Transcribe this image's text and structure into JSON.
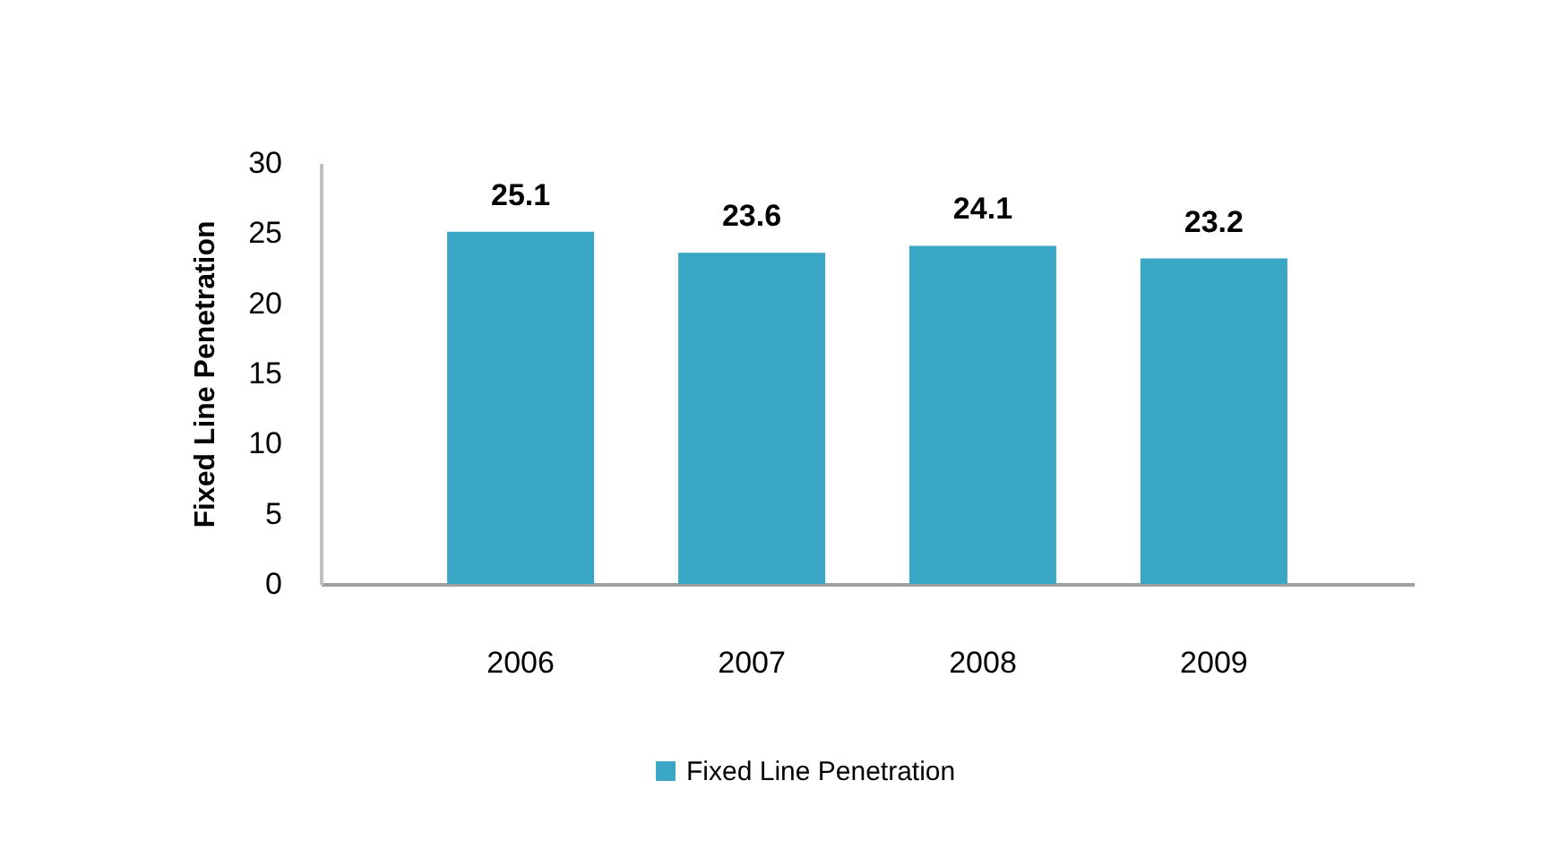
{
  "chart_data": {
    "type": "bar",
    "categories": [
      "2006",
      "2007",
      "2008",
      "2009"
    ],
    "series": [
      {
        "name": "Fixed Line Penetration",
        "color": "#3aa6c6",
        "values": [
          25.1,
          23.6,
          24.1,
          23.2
        ]
      }
    ],
    "ylabel": "Fixed Line Penetration",
    "ylim": [
      0,
      30
    ],
    "yticks": [
      0,
      5,
      10,
      15,
      20,
      25,
      30
    ],
    "data_labels": true,
    "grid": false,
    "legend": "bottom"
  }
}
